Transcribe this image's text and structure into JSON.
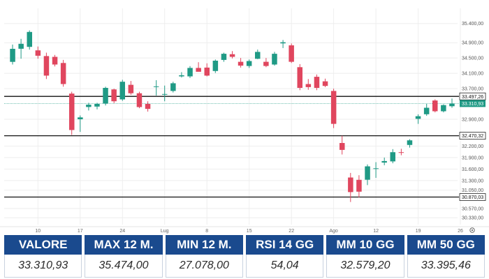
{
  "colors": {
    "up": "#1f9a85",
    "down": "#e0465e",
    "grid": "#eeeeee",
    "stats_header": "#1a4a8e",
    "current_price_bg": "#1f9a85"
  },
  "chart_data": {
    "type": "candlestick",
    "grid": true,
    "ylim": [
      30150,
      35650
    ],
    "y_ticks": [
      "35.400,00",
      "34.900,00",
      "34.500,00",
      "34.100,00",
      "33.700,00",
      "32.900,00",
      "32.200,00",
      "31.900,00",
      "31.600,00",
      "31.300,00",
      "31.050,00",
      "30.570,00",
      "30.330,00"
    ],
    "y_tick_values": [
      35400,
      34900,
      34500,
      34100,
      33700,
      32900,
      32200,
      31900,
      31600,
      31300,
      31050,
      30570,
      30330
    ],
    "x_ticks": [
      {
        "label": "10",
        "index": 3
      },
      {
        "label": "17",
        "index": 8
      },
      {
        "label": "24",
        "index": 13
      },
      {
        "label": "Lug",
        "index": 18
      },
      {
        "label": "8",
        "index": 23
      },
      {
        "label": "15",
        "index": 28
      },
      {
        "label": "22",
        "index": 33
      },
      {
        "label": "Ago",
        "index": 38
      },
      {
        "label": "12",
        "index": 43
      },
      {
        "label": "19",
        "index": 48
      },
      {
        "label": "26",
        "index": 53
      }
    ],
    "x_end_icon": "gear-icon",
    "levels": [
      {
        "value": 33497.26,
        "label": "33.497,26"
      },
      {
        "value": 32470.32,
        "label": "32.470,32"
      },
      {
        "value": 30870.03,
        "label": "30.870,03"
      }
    ],
    "current": {
      "value": 33310.93,
      "label": "33.310,93"
    },
    "candles": [
      {
        "o": 34400,
        "h": 34850,
        "l": 34330,
        "c": 34740
      },
      {
        "o": 34740,
        "h": 35000,
        "l": 34480,
        "c": 34870
      },
      {
        "o": 34790,
        "h": 35220,
        "l": 34720,
        "c": 35180
      },
      {
        "o": 34700,
        "h": 34800,
        "l": 34480,
        "c": 34560
      },
      {
        "o": 34550,
        "h": 34640,
        "l": 33950,
        "c": 34040
      },
      {
        "o": 34530,
        "h": 34580,
        "l": 34280,
        "c": 34330
      },
      {
        "o": 34370,
        "h": 34450,
        "l": 33750,
        "c": 33820
      },
      {
        "o": 33570,
        "h": 33620,
        "l": 32490,
        "c": 32620
      },
      {
        "o": 32900,
        "h": 33000,
        "l": 32570,
        "c": 32950
      },
      {
        "o": 33220,
        "h": 33330,
        "l": 33130,
        "c": 33280
      },
      {
        "o": 33230,
        "h": 33330,
        "l": 33160,
        "c": 33300
      },
      {
        "o": 33310,
        "h": 33750,
        "l": 33260,
        "c": 33720
      },
      {
        "o": 33680,
        "h": 33700,
        "l": 33320,
        "c": 33370
      },
      {
        "o": 33420,
        "h": 33930,
        "l": 33380,
        "c": 33880
      },
      {
        "o": 33800,
        "h": 33900,
        "l": 33540,
        "c": 33580
      },
      {
        "o": 33580,
        "h": 33620,
        "l": 33190,
        "c": 33220
      },
      {
        "o": 33300,
        "h": 33370,
        "l": 33100,
        "c": 33170
      },
      {
        "o": 33760,
        "h": 33920,
        "l": 33520,
        "c": 33760
      },
      {
        "o": 33560,
        "h": 33780,
        "l": 33370,
        "c": 33560
      },
      {
        "o": 33640,
        "h": 33880,
        "l": 33600,
        "c": 33840
      },
      {
        "o": 34020,
        "h": 34130,
        "l": 33990,
        "c": 34050
      },
      {
        "o": 34020,
        "h": 34290,
        "l": 33980,
        "c": 34240
      },
      {
        "o": 34240,
        "h": 34390,
        "l": 34150,
        "c": 34140
      },
      {
        "o": 34250,
        "h": 34360,
        "l": 34020,
        "c": 34040
      },
      {
        "o": 34160,
        "h": 34460,
        "l": 34110,
        "c": 34430
      },
      {
        "o": 34450,
        "h": 34640,
        "l": 34400,
        "c": 34610
      },
      {
        "o": 34600,
        "h": 34680,
        "l": 34490,
        "c": 34530
      },
      {
        "o": 34400,
        "h": 34500,
        "l": 34250,
        "c": 34300
      },
      {
        "o": 34290,
        "h": 34460,
        "l": 34240,
        "c": 34420
      },
      {
        "o": 34480,
        "h": 34720,
        "l": 34470,
        "c": 34660
      },
      {
        "o": 34400,
        "h": 34500,
        "l": 34260,
        "c": 34290
      },
      {
        "o": 34330,
        "h": 34660,
        "l": 34300,
        "c": 34610
      },
      {
        "o": 34880,
        "h": 34970,
        "l": 34760,
        "c": 34910
      },
      {
        "o": 34830,
        "h": 34880,
        "l": 34370,
        "c": 34400
      },
      {
        "o": 34260,
        "h": 34340,
        "l": 33660,
        "c": 33720
      },
      {
        "o": 33820,
        "h": 33950,
        "l": 33670,
        "c": 33740
      },
      {
        "o": 34010,
        "h": 34070,
        "l": 33660,
        "c": 33720
      },
      {
        "o": 33890,
        "h": 33960,
        "l": 33740,
        "c": 33770
      },
      {
        "o": 33640,
        "h": 33700,
        "l": 32670,
        "c": 32780
      },
      {
        "o": 32280,
        "h": 32470,
        "l": 31980,
        "c": 32100
      },
      {
        "o": 31380,
        "h": 31500,
        "l": 30740,
        "c": 31000
      },
      {
        "o": 31320,
        "h": 31440,
        "l": 30860,
        "c": 31010
      },
      {
        "o": 31320,
        "h": 31720,
        "l": 31180,
        "c": 31670
      },
      {
        "o": 31620,
        "h": 31780,
        "l": 31370,
        "c": 31620
      },
      {
        "o": 31770,
        "h": 31900,
        "l": 31700,
        "c": 31810
      },
      {
        "o": 31800,
        "h": 32120,
        "l": 31750,
        "c": 32040
      },
      {
        "o": 32040,
        "h": 32130,
        "l": 31960,
        "c": 32030
      },
      {
        "o": 32230,
        "h": 32380,
        "l": 32160,
        "c": 32350
      },
      {
        "o": 32910,
        "h": 33030,
        "l": 32780,
        "c": 32980
      },
      {
        "o": 33030,
        "h": 33300,
        "l": 32990,
        "c": 33200
      },
      {
        "o": 33390,
        "h": 33420,
        "l": 33080,
        "c": 33110
      },
      {
        "o": 33110,
        "h": 33290,
        "l": 33080,
        "c": 33270
      },
      {
        "o": 33240,
        "h": 33440,
        "l": 33200,
        "c": 33310
      }
    ]
  },
  "stats": [
    {
      "label": "VALORE",
      "value": "33.310,93"
    },
    {
      "label": "MAX 12 M.",
      "value": "35.474,00"
    },
    {
      "label": "MIN 12 M.",
      "value": "27.078,00"
    },
    {
      "label": "RSI 14 GG",
      "value": "54,04"
    },
    {
      "label": "MM 10 GG",
      "value": "32.579,20"
    },
    {
      "label": "MM 50 GG",
      "value": "33.395,46"
    }
  ]
}
